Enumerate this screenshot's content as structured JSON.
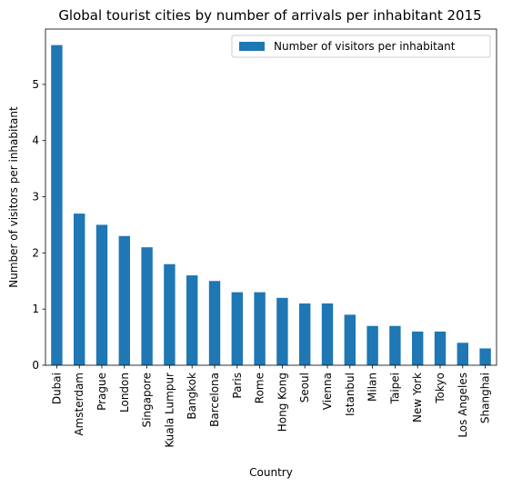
{
  "chart_data": {
    "type": "bar",
    "title": "Global tourist cities by number of arrivals per inhabitant 2015",
    "xlabel": "Country",
    "ylabel": "Number of visitors per inhabitant",
    "categories": [
      "Dubai",
      "Amsterdam",
      "Prague",
      "London",
      "Singapore",
      "Kuala Lumpur",
      "Bangkok",
      "Barcelona",
      "Paris",
      "Rome",
      "Hong Kong",
      "Seoul",
      "Vienna",
      "Istanbul",
      "Milan",
      "Taipei",
      "New York",
      "Tokyo",
      "Los Angeles",
      "Shanghai"
    ],
    "series": [
      {
        "name": "Number of visitors per inhabitant",
        "values": [
          5.7,
          2.7,
          2.5,
          2.3,
          2.1,
          1.8,
          1.6,
          1.5,
          1.3,
          1.3,
          1.2,
          1.1,
          1.1,
          0.9,
          0.7,
          0.7,
          0.6,
          0.6,
          0.4,
          0.3
        ],
        "color": "#1f77b4"
      }
    ],
    "ylim": [
      0,
      5.985
    ],
    "yticks": [
      0,
      1,
      2,
      3,
      4,
      5
    ],
    "grid": false,
    "legend_position": "top-right"
  }
}
